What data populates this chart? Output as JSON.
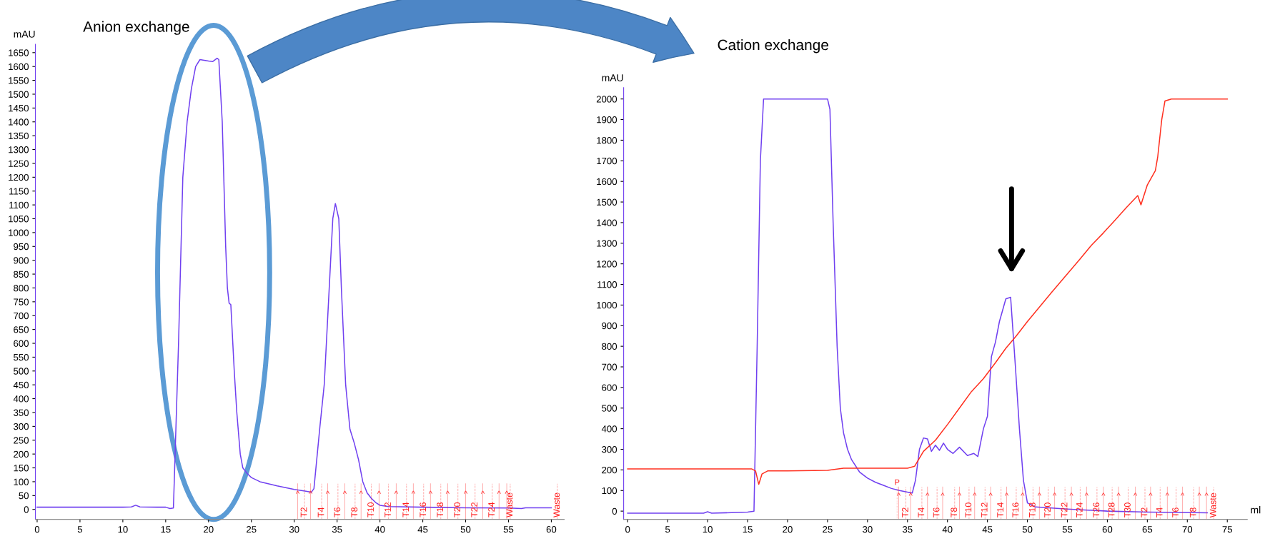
{
  "chart_data": [
    {
      "type": "line",
      "title": "Anion exchange",
      "ylabel": "mAU",
      "xlim": [
        -0.2,
        61.5
      ],
      "ylim": [
        -36,
        1680
      ],
      "xticks": [
        0,
        5,
        10,
        15,
        20,
        25,
        30,
        35,
        40,
        45,
        50,
        55,
        60
      ],
      "yticks": [
        0,
        50,
        100,
        150,
        200,
        250,
        300,
        350,
        400,
        450,
        500,
        550,
        600,
        650,
        700,
        750,
        800,
        850,
        900,
        950,
        1000,
        1050,
        1100,
        1150,
        1200,
        1250,
        1300,
        1350,
        1400,
        1450,
        1500,
        1550,
        1600,
        1650
      ],
      "grid": false,
      "series": [
        {
          "color": "#7040f0",
          "x": [
            0,
            5,
            10,
            11,
            11.5,
            12,
            14,
            15,
            15.5,
            15.9,
            16,
            16.5,
            17,
            17.5,
            18,
            18.5,
            19,
            20,
            20.5,
            21,
            21.2,
            21.6,
            22.0,
            22.2,
            22.4,
            22.6,
            23,
            23.3,
            23.7,
            24,
            24.5,
            25,
            26,
            28,
            30,
            31.5,
            32,
            32.3,
            33,
            33.5,
            34,
            34.5,
            34.8,
            35.2,
            35.5,
            36,
            36.5,
            37,
            37.5,
            38,
            38.5,
            39,
            39.5,
            40,
            41,
            45,
            50,
            55,
            56.5,
            57,
            60
          ],
          "values": [
            8,
            8,
            8,
            9,
            15,
            9,
            8,
            8,
            3,
            5,
            100,
            600,
            1200,
            1400,
            1520,
            1600,
            1625,
            1620,
            1618,
            1630,
            1625,
            1400,
            950,
            800,
            745,
            740,
            500,
            350,
            200,
            150,
            130,
            115,
            100,
            85,
            72,
            65,
            62,
            75,
            300,
            450,
            750,
            1050,
            1105,
            1050,
            800,
            450,
            290,
            240,
            180,
            100,
            60,
            40,
            25,
            15,
            10,
            8,
            6,
            5,
            3,
            6,
            6
          ]
        }
      ],
      "ref_lines": [
        {
          "axis": "x",
          "value": 31.2,
          "label": "T2",
          "color": "#ff2020",
          "line_style": "dashed"
        },
        {
          "axis": "x",
          "value": 33.2,
          "label": "T4",
          "color": "#ff2020",
          "line_style": "dashed"
        },
        {
          "axis": "x",
          "value": 35.1,
          "label": "T6",
          "color": "#ff2020",
          "line_style": "dashed"
        },
        {
          "axis": "x",
          "value": 37.1,
          "label": "T8",
          "color": "#ff2020",
          "line_style": "dashed"
        },
        {
          "axis": "x",
          "value": 39.0,
          "label": "T10",
          "color": "#ff2020",
          "line_style": "dashed"
        },
        {
          "axis": "x",
          "value": 41.0,
          "label": "T12",
          "color": "#ff2020",
          "line_style": "dashed"
        },
        {
          "axis": "x",
          "value": 43.1,
          "label": "T14",
          "color": "#ff2020",
          "line_style": "dashed"
        },
        {
          "axis": "x",
          "value": 45.1,
          "label": "T16",
          "color": "#ff2020",
          "line_style": "dashed"
        },
        {
          "axis": "x",
          "value": 47.1,
          "label": "T18",
          "color": "#ff2020",
          "line_style": "dashed"
        },
        {
          "axis": "x",
          "value": 49.1,
          "label": "T20",
          "color": "#ff2020",
          "line_style": "dashed"
        },
        {
          "axis": "x",
          "value": 51.1,
          "label": "T22",
          "color": "#ff2020",
          "line_style": "dashed"
        },
        {
          "axis": "x",
          "value": 53.1,
          "label": "T24",
          "color": "#ff2020",
          "line_style": "dashed"
        },
        {
          "axis": "x",
          "value": 55.2,
          "label": "Waste",
          "color": "#ff2020",
          "line_style": "dashed"
        },
        {
          "axis": "x",
          "value": 60.7,
          "label": "Waste",
          "color": "#ff2020",
          "line_style": "dashed"
        },
        {
          "axis": "x",
          "value": 30.4,
          "label": "^",
          "color": "#ff2020"
        },
        {
          "axis": "x",
          "value": 31.9,
          "label": "^",
          "color": "#ff2020"
        },
        {
          "axis": "x",
          "value": 33.9,
          "label": "^",
          "color": "#ff2020"
        },
        {
          "axis": "x",
          "value": 35.9,
          "label": "^",
          "color": "#ff2020"
        },
        {
          "axis": "x",
          "value": 37.8,
          "label": "^",
          "color": "#ff2020"
        },
        {
          "axis": "x",
          "value": 39.9,
          "label": "^",
          "color": "#ff2020"
        },
        {
          "axis": "x",
          "value": 41.9,
          "label": "^",
          "color": "#ff2020"
        },
        {
          "axis": "x",
          "value": 43.9,
          "label": "^",
          "color": "#ff2020"
        },
        {
          "axis": "x",
          "value": 45.9,
          "label": "^",
          "color": "#ff2020"
        },
        {
          "axis": "x",
          "value": 47.9,
          "label": "^",
          "color": "#ff2020"
        },
        {
          "axis": "x",
          "value": 50.0,
          "label": "^",
          "color": "#ff2020"
        },
        {
          "axis": "x",
          "value": 52.0,
          "label": "^",
          "color": "#ff2020"
        },
        {
          "axis": "x",
          "value": 53.9,
          "label": "^",
          "color": "#ff2020"
        },
        {
          "axis": "x",
          "value": 54.8,
          "label": "^",
          "color": "#ff2020"
        }
      ]
    },
    {
      "type": "line",
      "title": "Cation exchange",
      "ylabel": "mAU",
      "xlabel": "ml",
      "xlim": [
        -0.5,
        77.5
      ],
      "ylim": [
        -40,
        2055
      ],
      "xticks": [
        0,
        5,
        10,
        15,
        20,
        25,
        30,
        35,
        40,
        45,
        50,
        55,
        60,
        65,
        70,
        75
      ],
      "yticks": [
        0,
        100,
        200,
        300,
        400,
        500,
        600,
        700,
        800,
        900,
        1000,
        1100,
        1200,
        1300,
        1400,
        1500,
        1600,
        1700,
        1800,
        1900,
        2000
      ],
      "grid": false,
      "series": [
        {
          "color": "#7040f0",
          "x": [
            0,
            5,
            9.5,
            10,
            10.5,
            15,
            15.8,
            16.2,
            16.6,
            17,
            25,
            25.3,
            25.7,
            26.2,
            26.6,
            27,
            27.5,
            28,
            29,
            30,
            31,
            32,
            33,
            34,
            35,
            35.6,
            36,
            36.5,
            37,
            37.5,
            38,
            38.5,
            39,
            39.5,
            40,
            40.7,
            41.5,
            42.5,
            43.3,
            43.8,
            44.5,
            45,
            45.5,
            46,
            46.5,
            47.3,
            47.9,
            48.5,
            49,
            49.5,
            50,
            51,
            55,
            60,
            65,
            72.5
          ],
          "values": [
            -10,
            -10,
            -10,
            -3,
            -10,
            -5,
            0,
            800,
            1700,
            2000,
            2000,
            1950,
            1400,
            800,
            500,
            380,
            300,
            250,
            190,
            160,
            140,
            125,
            110,
            100,
            92,
            88,
            150,
            300,
            355,
            350,
            290,
            320,
            295,
            330,
            300,
            280,
            310,
            270,
            280,
            265,
            400,
            460,
            750,
            820,
            920,
            1030,
            1038,
            700,
            400,
            150,
            40,
            20,
            10,
            0,
            -5,
            -8
          ]
        },
        {
          "color": "#ff3020",
          "x": [
            0,
            15.5,
            16,
            16.4,
            16.8,
            17.5,
            20,
            25,
            27,
            35,
            35.9,
            37,
            38.5,
            40,
            41.5,
            43,
            44.5,
            46,
            47.3,
            48.6,
            50,
            51.5,
            53,
            54.9,
            56.5,
            58,
            59.5,
            60.8,
            62.3,
            63.8,
            64.2,
            65.0,
            66.0,
            66.3,
            66.8,
            67.2,
            68,
            75
          ],
          "values": [
            205,
            205,
            195,
            130,
            180,
            195,
            195,
            198,
            208,
            208,
            218,
            290,
            344,
            420,
            500,
            580,
            643,
            720,
            790,
            850,
            920,
            990,
            1060,
            1147,
            1220,
            1290,
            1350,
            1405,
            1470,
            1531,
            1486,
            1583,
            1652,
            1720,
            1900,
            1990,
            2000,
            2000
          ]
        }
      ],
      "ref_lines": [
        {
          "axis": "x",
          "value": 33.7,
          "label": "P",
          "color": "#ff2020",
          "line_style": "dotted"
        },
        {
          "axis": "x",
          "value": 34.8,
          "label": "T2",
          "color": "#ff2020",
          "line_style": "dashed"
        },
        {
          "axis": "x",
          "value": 36.8,
          "label": "T4",
          "color": "#ff2020",
          "line_style": "dashed"
        },
        {
          "axis": "x",
          "value": 38.7,
          "label": "T6",
          "color": "#ff2020",
          "line_style": "dashed"
        },
        {
          "axis": "x",
          "value": 40.9,
          "label": "T8",
          "color": "#ff2020",
          "line_style": "dashed"
        },
        {
          "axis": "x",
          "value": 42.7,
          "label": "T10",
          "color": "#ff2020",
          "line_style": "dashed"
        },
        {
          "axis": "x",
          "value": 44.7,
          "label": "T12",
          "color": "#ff2020",
          "line_style": "dashed"
        },
        {
          "axis": "x",
          "value": 46.7,
          "label": "T14",
          "color": "#ff2020",
          "line_style": "dashed"
        },
        {
          "axis": "x",
          "value": 48.6,
          "label": "T16",
          "color": "#ff2020",
          "line_style": "dashed"
        },
        {
          "axis": "x",
          "value": 50.7,
          "label": "T18",
          "color": "#ff2020",
          "line_style": "dashed"
        },
        {
          "axis": "x",
          "value": 52.6,
          "label": "T20",
          "color": "#ff2020",
          "line_style": "dashed"
        },
        {
          "axis": "x",
          "value": 54.7,
          "label": "T22",
          "color": "#ff2020",
          "line_style": "dashed"
        },
        {
          "axis": "x",
          "value": 56.6,
          "label": "T24",
          "color": "#ff2020",
          "line_style": "dashed"
        },
        {
          "axis": "x",
          "value": 58.7,
          "label": "T26",
          "color": "#ff2020",
          "line_style": "dashed"
        },
        {
          "axis": "x",
          "value": 60.6,
          "label": "T28",
          "color": "#ff2020",
          "line_style": "dashed"
        },
        {
          "axis": "x",
          "value": 62.6,
          "label": "T30",
          "color": "#ff2020",
          "line_style": "dashed"
        },
        {
          "axis": "x",
          "value": 64.7,
          "label": "T2",
          "color": "#ff2020",
          "line_style": "dashed"
        },
        {
          "axis": "x",
          "value": 66.6,
          "label": "T4",
          "color": "#ff2020",
          "line_style": "dashed"
        },
        {
          "axis": "x",
          "value": 68.6,
          "label": "T6",
          "color": "#ff2020",
          "line_style": "dashed"
        },
        {
          "axis": "x",
          "value": 70.8,
          "label": "T8",
          "color": "#ff2020",
          "line_style": "dashed"
        },
        {
          "axis": "x",
          "value": 73.3,
          "label": "Waste",
          "color": "#ff2020",
          "line_style": "dashed"
        },
        {
          "axis": "x",
          "value": 33.9,
          "label": "^",
          "color": "#ff2020"
        },
        {
          "axis": "x",
          "value": 35.4,
          "label": "^",
          "color": "#ff2020"
        },
        {
          "axis": "x",
          "value": 37.5,
          "label": "^",
          "color": "#ff2020"
        },
        {
          "axis": "x",
          "value": 39.4,
          "label": "^",
          "color": "#ff2020"
        },
        {
          "axis": "x",
          "value": 41.5,
          "label": "^",
          "color": "#ff2020"
        },
        {
          "axis": "x",
          "value": 43.4,
          "label": "^",
          "color": "#ff2020"
        },
        {
          "axis": "x",
          "value": 45.4,
          "label": "^",
          "color": "#ff2020"
        },
        {
          "axis": "x",
          "value": 47.4,
          "label": "^",
          "color": "#ff2020"
        },
        {
          "axis": "x",
          "value": 49.4,
          "label": "^",
          "color": "#ff2020"
        },
        {
          "axis": "x",
          "value": 51.5,
          "label": "^",
          "color": "#ff2020"
        },
        {
          "axis": "x",
          "value": 53.4,
          "label": "^",
          "color": "#ff2020"
        },
        {
          "axis": "x",
          "value": 55.5,
          "label": "^",
          "color": "#ff2020"
        },
        {
          "axis": "x",
          "value": 57.4,
          "label": "^",
          "color": "#ff2020"
        },
        {
          "axis": "x",
          "value": 59.5,
          "label": "^",
          "color": "#ff2020"
        },
        {
          "axis": "x",
          "value": 61.4,
          "label": "^",
          "color": "#ff2020"
        },
        {
          "axis": "x",
          "value": 63.5,
          "label": "^",
          "color": "#ff2020"
        },
        {
          "axis": "x",
          "value": 65.4,
          "label": "^",
          "color": "#ff2020"
        },
        {
          "axis": "x",
          "value": 67.5,
          "label": "^",
          "color": "#ff2020"
        },
        {
          "axis": "x",
          "value": 69.4,
          "label": "^",
          "color": "#ff2020"
        },
        {
          "axis": "x",
          "value": 71.5,
          "label": "^",
          "color": "#ff2020"
        },
        {
          "axis": "x",
          "value": 72.4,
          "label": "^",
          "color": "#ff2020"
        }
      ]
    }
  ]
}
